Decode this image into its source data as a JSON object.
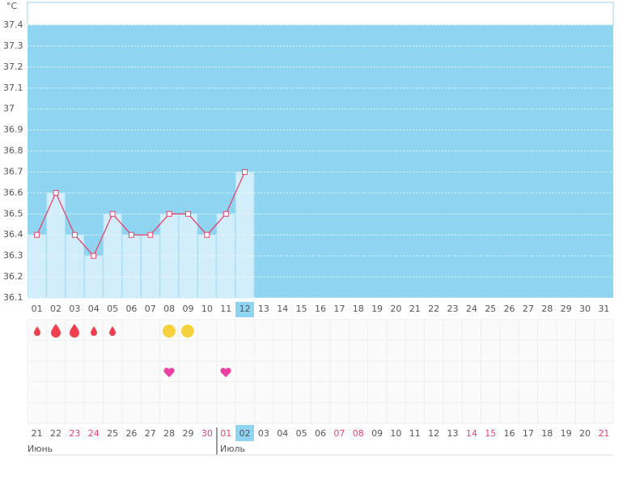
{
  "chart_data": {
    "type": "line",
    "y_unit": "°C",
    "categories": [
      "01",
      "02",
      "03",
      "04",
      "05",
      "06",
      "07",
      "08",
      "09",
      "10",
      "11",
      "12",
      "13",
      "14",
      "15",
      "16",
      "17",
      "18",
      "19",
      "20",
      "21",
      "22",
      "23",
      "24",
      "25",
      "26",
      "27",
      "28",
      "29",
      "30",
      "31"
    ],
    "values": [
      36.4,
      36.6,
      36.4,
      36.3,
      36.5,
      36.4,
      36.4,
      36.5,
      36.5,
      36.4,
      36.5,
      36.7,
      null,
      null,
      null,
      null,
      null,
      null,
      null,
      null,
      null,
      null,
      null,
      null,
      null,
      null,
      null,
      null,
      null,
      null,
      null
    ],
    "color": "#e8436c",
    "ylim": [
      36.1,
      37.4
    ],
    "yticks": [
      36.1,
      36.2,
      36.3,
      36.4,
      36.5,
      36.6,
      36.7,
      36.8,
      36.9,
      37,
      37.1,
      37.2,
      37.3,
      37.4
    ],
    "grid": true
  },
  "dates": [
    {
      "label": "21",
      "weekend": false
    },
    {
      "label": "22",
      "weekend": false
    },
    {
      "label": "23",
      "weekend": true
    },
    {
      "label": "24",
      "weekend": true
    },
    {
      "label": "25",
      "weekend": false
    },
    {
      "label": "26",
      "weekend": false
    },
    {
      "label": "27",
      "weekend": false
    },
    {
      "label": "28",
      "weekend": false
    },
    {
      "label": "29",
      "weekend": false
    },
    {
      "label": "30",
      "weekend": true
    },
    {
      "label": "01",
      "weekend": true
    },
    {
      "label": "02",
      "weekend": false
    },
    {
      "label": "03",
      "weekend": false
    },
    {
      "label": "04",
      "weekend": false
    },
    {
      "label": "05",
      "weekend": false
    },
    {
      "label": "06",
      "weekend": false
    },
    {
      "label": "07",
      "weekend": true
    },
    {
      "label": "08",
      "weekend": true
    },
    {
      "label": "09",
      "weekend": false
    },
    {
      "label": "10",
      "weekend": false
    },
    {
      "label": "11",
      "weekend": false
    },
    {
      "label": "12",
      "weekend": false
    },
    {
      "label": "13",
      "weekend": false
    },
    {
      "label": "14",
      "weekend": true
    },
    {
      "label": "15",
      "weekend": true
    },
    {
      "label": "16",
      "weekend": false
    },
    {
      "label": "17",
      "weekend": false
    },
    {
      "label": "18",
      "weekend": false
    },
    {
      "label": "19",
      "weekend": false
    },
    {
      "label": "20",
      "weekend": false
    },
    {
      "label": "21",
      "weekend": true
    }
  ],
  "months": [
    "Июнь",
    "Июль"
  ]
}
